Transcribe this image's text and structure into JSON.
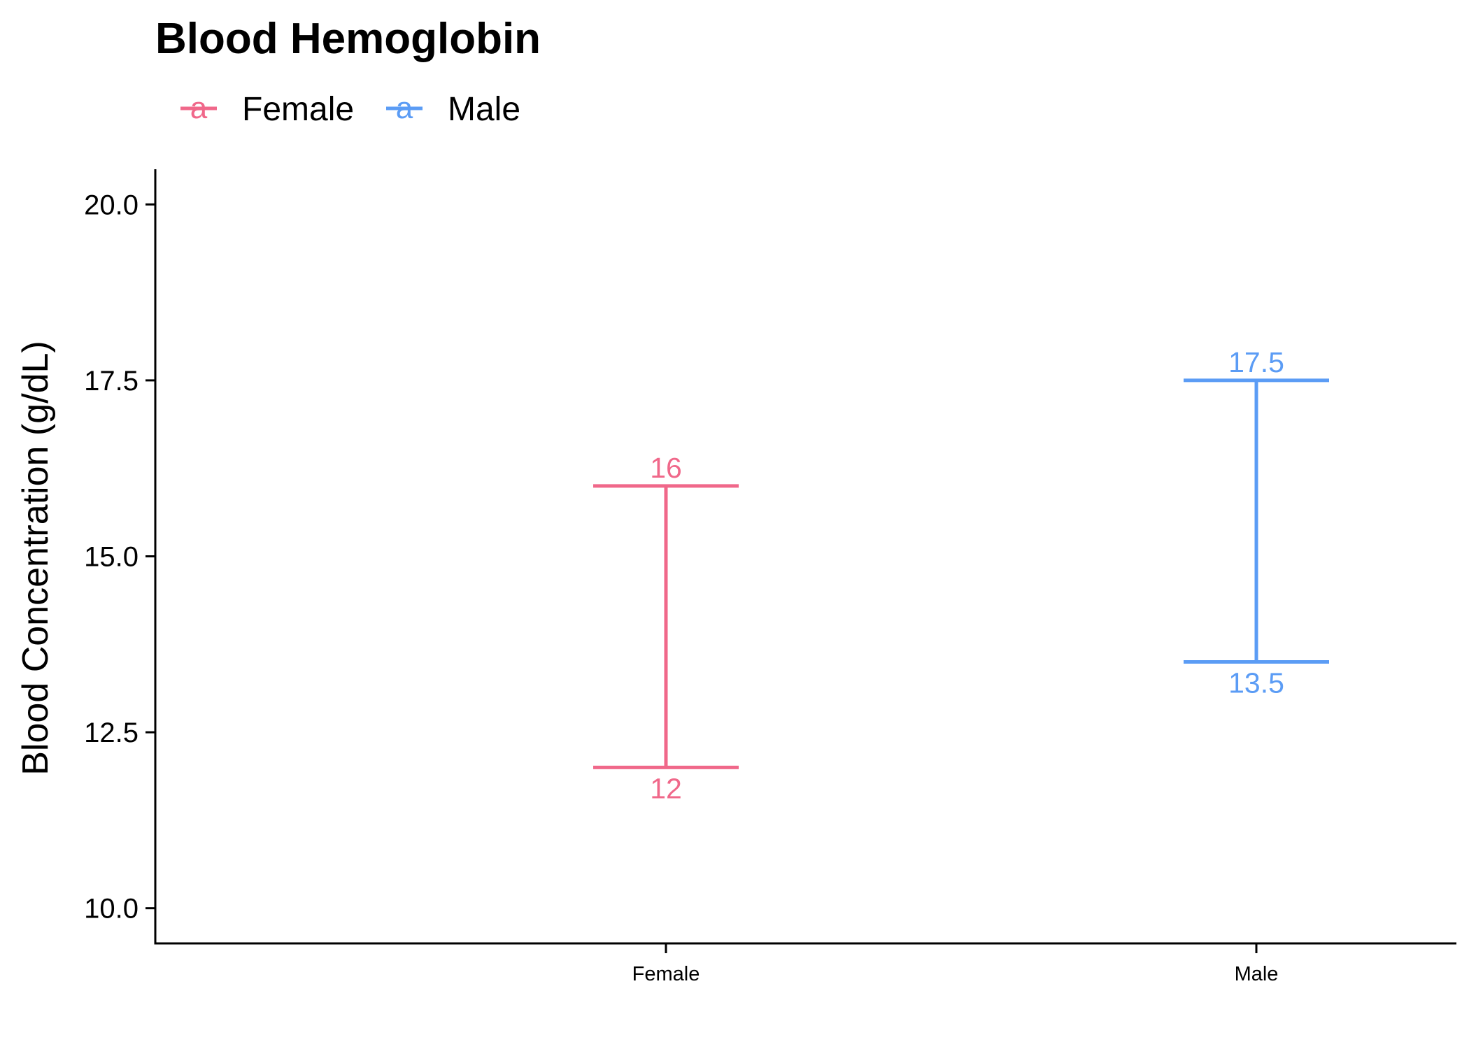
{
  "chart_data": {
    "type": "errorbar",
    "title": "Blood Hemoglobin",
    "xlabel": "",
    "ylabel": "Blood Concentration (g/dL)",
    "categories": [
      "Female",
      "Male"
    ],
    "ylim": [
      9.5,
      20.5
    ],
    "yticks": [
      10.0,
      12.5,
      15.0,
      17.5,
      20.0
    ],
    "ytick_labels": [
      "10.0",
      "12.5",
      "15.0",
      "17.5",
      "20.0"
    ],
    "legend": {
      "position": "top-left",
      "key_glyph": "a",
      "entries": [
        {
          "name": "Female",
          "color": "#F0688A"
        },
        {
          "name": "Male",
          "color": "#5B9CF5"
        }
      ]
    },
    "series": [
      {
        "name": "Female",
        "category": "Female",
        "low": 12,
        "high": 16,
        "low_label": "12",
        "high_label": "16",
        "color": "#F0688A"
      },
      {
        "name": "Male",
        "category": "Male",
        "low": 13.5,
        "high": 17.5,
        "low_label": "13.5",
        "high_label": "17.5",
        "color": "#5B9CF5"
      }
    ],
    "grid": false
  }
}
